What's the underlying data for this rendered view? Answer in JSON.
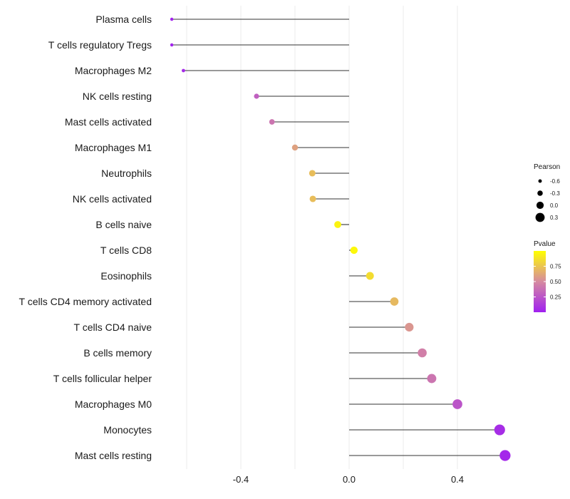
{
  "chart_data": {
    "type": "lollipop",
    "title": "",
    "xlabel": "",
    "ylabel": "",
    "xlim": [
      -0.66,
      0.6
    ],
    "x_ticks": [
      -0.4,
      0.0,
      0.4
    ],
    "x_tick_labels": [
      "-0.4",
      "0.0",
      "0.4"
    ],
    "baseline": 0.0,
    "grid": "vertical",
    "categories": [
      "Plasma cells",
      "T cells regulatory  Tregs",
      "Macrophages M2",
      "NK cells resting",
      "Mast cells activated",
      "Macrophages M1",
      "Neutrophils",
      "NK cells activated",
      "B cells naive",
      "T cells CD8",
      "Eosinophils",
      "T cells CD4 memory activated",
      "T cells CD4 naive",
      "B cells memory",
      "T cells follicular helper",
      "Macrophages M0",
      "Monocytes",
      "Mast cells resting"
    ],
    "pearson": [
      -0.655,
      -0.655,
      -0.612,
      -0.342,
      -0.285,
      -0.2,
      -0.136,
      -0.134,
      -0.042,
      0.018,
      0.077,
      0.167,
      0.222,
      0.27,
      0.305,
      0.4,
      0.556,
      0.576
    ],
    "pvalue": [
      0.02,
      0.02,
      0.05,
      0.3,
      0.4,
      0.6,
      0.72,
      0.72,
      0.95,
      0.97,
      0.85,
      0.7,
      0.55,
      0.45,
      0.4,
      0.25,
      0.06,
      0.04
    ],
    "size_legend": {
      "title": "Pearson",
      "labels": [
        "-0.6",
        "-0.3",
        "0.0",
        "0.3"
      ],
      "values": [
        -0.6,
        -0.3,
        0.0,
        0.3
      ]
    },
    "color_legend": {
      "title": "Pvalue",
      "labels": [
        "0.75",
        "0.50",
        "0.25"
      ],
      "values": [
        0.75,
        0.5,
        0.25
      ],
      "range": [
        0.0,
        1.0
      ],
      "low_color": "#a020f0",
      "mid_color": "#d68aa0",
      "high_color": "#ffff00"
    }
  }
}
